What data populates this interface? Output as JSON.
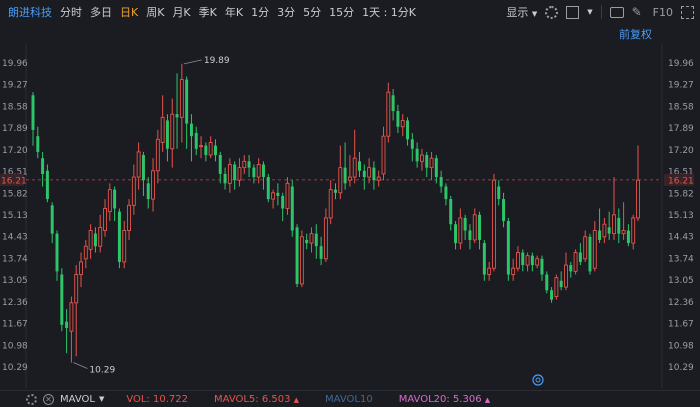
{
  "toolbar": {
    "stock_name": "朗进科技",
    "tabs": [
      "分时",
      "多日",
      "日K",
      "周K",
      "月K",
      "季K",
      "年K",
      "1分",
      "3分",
      "5分",
      "15分",
      "1天 : 1分K"
    ],
    "active_tab": "日K",
    "display_label": "显示",
    "f10_label": "F10"
  },
  "adjust_label": "前复权",
  "colors": {
    "up": "#e8534a",
    "down": "#2ec56a",
    "ref_line": "#e8534a",
    "grid": "#4a4d56"
  },
  "price_axis": {
    "left_ticks": [
      "19.96",
      "19.27",
      "18.58",
      "17.89",
      "17.20",
      "16.51",
      "15.82",
      "15.13",
      "14.43",
      "13.74",
      "13.05",
      "12.36",
      "11.67",
      "10.98",
      "10.29"
    ],
    "current_price": "16.21",
    "right_ticks": [
      "19.96",
      "19.27",
      "18.58",
      "17.89",
      "17.20",
      "16.51",
      "15.82",
      "15.13",
      "14.43",
      "13.74",
      "13.05",
      "12.36",
      "11.67",
      "10.98",
      "10.29"
    ]
  },
  "annotations": {
    "high": "19.89",
    "low": "10.29"
  },
  "bottom": {
    "indicator": "MAVOL",
    "vol_label": "VOL: 10.722",
    "ma5_label": "MAVOL5: 6.503",
    "ma10_label": "MAVOL10",
    "ma20_label": "MAVOL20: 5.306"
  },
  "chart_data": {
    "type": "candlestick",
    "ylim": [
      10.0,
      20.3
    ],
    "reference_price": 16.21,
    "candles": [
      [
        18.9,
        17.8,
        19.0,
        17.3
      ],
      [
        17.6,
        17.1,
        17.9,
        16.9
      ],
      [
        16.9,
        16.4,
        17.1,
        16.0
      ],
      [
        16.5,
        15.6,
        16.7,
        15.5
      ],
      [
        15.4,
        14.5,
        15.5,
        14.2
      ],
      [
        14.5,
        13.3,
        14.6,
        13.0
      ],
      [
        13.2,
        11.6,
        13.4,
        11.4
      ],
      [
        11.7,
        11.5,
        12.1,
        10.7
      ],
      [
        11.4,
        12.3,
        12.5,
        10.4
      ],
      [
        12.3,
        13.2,
        13.5,
        10.6
      ],
      [
        13.2,
        13.6,
        13.9,
        12.8
      ],
      [
        13.7,
        14.1,
        14.3,
        13.4
      ],
      [
        14.0,
        14.6,
        14.8,
        13.7
      ],
      [
        14.5,
        14.1,
        14.7,
        13.9
      ],
      [
        14.1,
        14.7,
        15.1,
        13.9
      ],
      [
        14.6,
        15.3,
        15.6,
        14.4
      ],
      [
        15.2,
        15.9,
        16.1,
        14.9
      ],
      [
        15.9,
        15.3,
        16.0,
        14.9
      ],
      [
        15.2,
        13.6,
        15.3,
        13.4
      ],
      [
        13.6,
        14.6,
        14.9,
        13.4
      ],
      [
        14.6,
        15.4,
        15.6,
        14.3
      ],
      [
        15.4,
        16.3,
        16.7,
        15.1
      ],
      [
        16.3,
        17.1,
        17.4,
        15.9
      ],
      [
        17.0,
        16.2,
        17.1,
        15.7
      ],
      [
        16.1,
        15.6,
        16.3,
        15.3
      ],
      [
        15.6,
        16.5,
        16.9,
        15.2
      ],
      [
        16.5,
        17.5,
        17.8,
        16.1
      ],
      [
        17.4,
        18.2,
        18.9,
        17.1
      ],
      [
        18.1,
        17.2,
        18.3,
        16.8
      ],
      [
        17.2,
        18.3,
        18.8,
        16.6
      ],
      [
        18.3,
        18.2,
        19.6,
        17.2
      ],
      [
        18.2,
        19.4,
        19.9,
        17.4
      ],
      [
        19.4,
        18.0,
        19.5,
        17.2
      ],
      [
        18.0,
        17.6,
        18.3,
        16.8
      ],
      [
        17.7,
        17.2,
        17.9,
        17.0
      ],
      [
        17.3,
        17.3,
        17.6,
        16.9
      ],
      [
        17.3,
        17.0,
        17.4,
        16.8
      ],
      [
        17.0,
        17.4,
        17.6,
        16.9
      ],
      [
        17.3,
        17.0,
        17.5,
        16.8
      ],
      [
        17.0,
        16.4,
        17.1,
        16.1
      ],
      [
        16.4,
        16.1,
        16.6,
        15.9
      ],
      [
        16.1,
        16.7,
        16.9,
        15.8
      ],
      [
        16.7,
        16.2,
        16.8,
        15.9
      ],
      [
        16.2,
        16.6,
        16.9,
        16.0
      ],
      [
        16.6,
        16.8,
        17.0,
        16.4
      ],
      [
        16.8,
        16.6,
        17.0,
        16.3
      ],
      [
        16.6,
        16.3,
        16.7,
        16.1
      ],
      [
        16.3,
        16.7,
        16.9,
        16.1
      ],
      [
        16.7,
        16.3,
        16.8,
        15.9
      ],
      [
        16.3,
        15.6,
        16.4,
        15.5
      ],
      [
        15.6,
        15.8,
        15.9,
        15.3
      ],
      [
        15.8,
        15.7,
        16.1,
        15.4
      ],
      [
        15.7,
        15.3,
        15.8,
        14.9
      ],
      [
        15.3,
        16.1,
        16.3,
        15.1
      ],
      [
        16.0,
        14.6,
        16.2,
        14.4
      ],
      [
        14.7,
        12.9,
        14.8,
        12.8
      ],
      [
        12.9,
        14.4,
        14.6,
        12.8
      ],
      [
        14.3,
        14.2,
        14.5,
        14.0
      ],
      [
        14.2,
        14.5,
        14.7,
        13.9
      ],
      [
        14.5,
        14.1,
        14.8,
        13.7
      ],
      [
        14.1,
        13.7,
        14.4,
        13.5
      ],
      [
        13.7,
        15.0,
        15.3,
        13.6
      ],
      [
        15.0,
        15.9,
        16.2,
        14.8
      ],
      [
        15.9,
        15.8,
        16.1,
        15.6
      ],
      [
        15.8,
        16.6,
        17.3,
        15.6
      ],
      [
        16.6,
        16.1,
        17.4,
        15.9
      ],
      [
        16.2,
        16.3,
        17.0,
        16.0
      ],
      [
        16.3,
        16.9,
        17.8,
        16.1
      ],
      [
        16.8,
        16.5,
        17.1,
        16.3
      ],
      [
        16.5,
        16.3,
        16.7,
        15.9
      ],
      [
        16.3,
        16.6,
        16.9,
        16.1
      ],
      [
        16.6,
        16.2,
        16.8,
        15.9
      ],
      [
        16.2,
        16.3,
        16.5,
        16.0
      ],
      [
        16.4,
        17.6,
        17.9,
        16.2
      ],
      [
        17.6,
        19.0,
        19.3,
        17.4
      ],
      [
        18.9,
        18.4,
        19.1,
        18.1
      ],
      [
        18.4,
        17.9,
        18.6,
        17.7
      ],
      [
        17.9,
        18.1,
        18.3,
        17.6
      ],
      [
        18.1,
        17.5,
        18.2,
        17.3
      ],
      [
        17.5,
        17.2,
        17.7,
        16.8
      ],
      [
        17.2,
        16.8,
        17.4,
        16.6
      ],
      [
        16.8,
        17.0,
        17.2,
        16.5
      ],
      [
        17.0,
        16.6,
        17.1,
        16.3
      ],
      [
        16.6,
        16.9,
        17.1,
        16.2
      ],
      [
        16.9,
        16.3,
        17.0,
        16.1
      ],
      [
        16.3,
        16.0,
        16.5,
        15.8
      ],
      [
        16.0,
        15.6,
        16.1,
        15.4
      ],
      [
        15.6,
        14.8,
        15.7,
        14.6
      ],
      [
        14.8,
        14.2,
        14.9,
        14.0
      ],
      [
        14.2,
        15.0,
        15.3,
        14.0
      ],
      [
        15.0,
        14.6,
        15.1,
        14.3
      ],
      [
        14.6,
        14.3,
        14.8,
        14.0
      ],
      [
        14.3,
        15.1,
        15.3,
        14.2
      ],
      [
        15.1,
        14.3,
        15.2,
        14.0
      ],
      [
        14.2,
        13.2,
        14.3,
        13.0
      ],
      [
        13.2,
        13.4,
        13.6,
        13.0
      ],
      [
        13.4,
        16.2,
        16.4,
        13.3
      ],
      [
        16.0,
        15.6,
        16.2,
        15.4
      ],
      [
        15.6,
        14.9,
        15.8,
        14.7
      ],
      [
        14.9,
        13.2,
        15.0,
        13.0
      ],
      [
        13.2,
        13.4,
        13.7,
        13.0
      ],
      [
        13.4,
        13.9,
        14.1,
        13.3
      ],
      [
        13.9,
        13.5,
        14.0,
        13.3
      ],
      [
        13.5,
        13.8,
        13.9,
        13.3
      ],
      [
        13.8,
        13.5,
        13.9,
        13.3
      ],
      [
        13.5,
        13.7,
        13.8,
        13.4
      ],
      [
        13.7,
        13.2,
        13.8,
        13.0
      ],
      [
        13.2,
        12.7,
        13.3,
        12.6
      ],
      [
        12.7,
        12.4,
        12.8,
        12.3
      ],
      [
        12.5,
        13.1,
        13.2,
        12.4
      ],
      [
        13.0,
        12.8,
        13.3,
        12.7
      ],
      [
        12.8,
        13.5,
        13.9,
        12.7
      ],
      [
        13.5,
        13.3,
        13.6,
        13.1
      ],
      [
        13.3,
        13.9,
        14.0,
        13.2
      ],
      [
        13.9,
        13.6,
        14.2,
        13.5
      ],
      [
        13.7,
        14.4,
        14.6,
        13.6
      ],
      [
        14.4,
        13.3,
        14.5,
        13.2
      ],
      [
        13.4,
        14.6,
        14.9,
        13.3
      ],
      [
        14.6,
        14.3,
        15.3,
        14.2
      ],
      [
        14.4,
        14.8,
        15.0,
        14.2
      ],
      [
        14.7,
        14.5,
        15.2,
        14.3
      ],
      [
        14.5,
        15.1,
        16.3,
        14.3
      ],
      [
        15.0,
        14.5,
        15.3,
        14.2
      ],
      [
        14.5,
        14.6,
        15.5,
        14.3
      ],
      [
        14.6,
        14.2,
        14.8,
        14.1
      ],
      [
        14.2,
        15.0,
        15.1,
        14.0
      ],
      [
        15.0,
        16.2,
        17.3,
        14.9
      ]
    ]
  }
}
